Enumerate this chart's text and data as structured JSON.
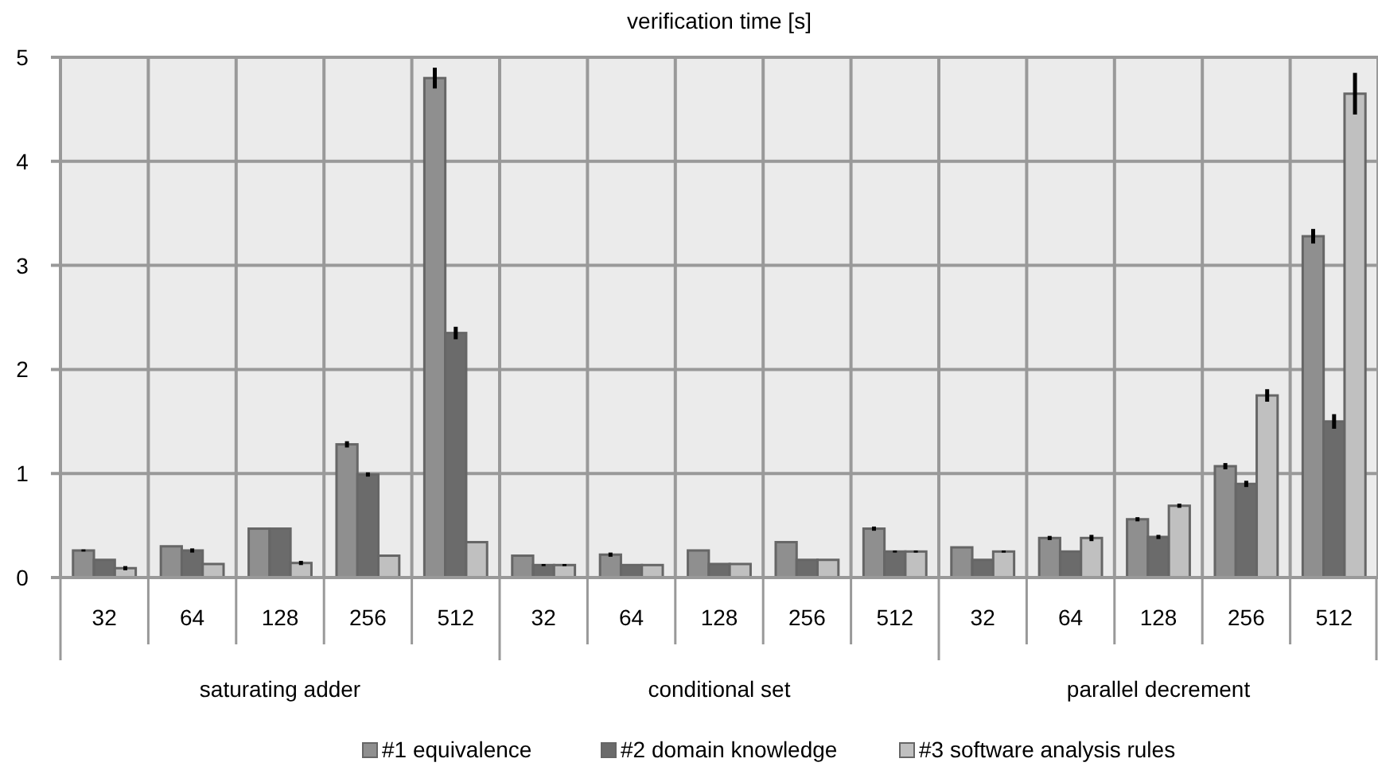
{
  "chart_data": {
    "type": "bar",
    "title": "verification time [s]",
    "categories": [
      "32",
      "64",
      "128",
      "256",
      "512",
      "32",
      "64",
      "128",
      "256",
      "512",
      "32",
      "64",
      "128",
      "256",
      "512"
    ],
    "annotations": [
      "saturating adder",
      "conditional set",
      "parallel decrement"
    ],
    "series": [
      {
        "name": "#1 equivalence",
        "color": "#8f8f8f",
        "values": [
          0.26,
          0.3,
          0.47,
          1.28,
          4.8,
          0.21,
          0.22,
          0.26,
          0.34,
          0.47,
          0.29,
          0.38,
          0.56,
          1.07,
          3.28
        ],
        "errors": [
          0.01,
          null,
          null,
          0.03,
          0.1,
          null,
          0.02,
          null,
          null,
          0.02,
          null,
          0.02,
          0.02,
          0.03,
          0.07
        ]
      },
      {
        "name": "#2 domain knowledge",
        "color": "#6b6b6b",
        "values": [
          0.17,
          0.26,
          0.47,
          0.99,
          2.35,
          0.12,
          0.12,
          0.13,
          0.17,
          0.25,
          0.17,
          0.25,
          0.39,
          0.9,
          1.5
        ],
        "errors": [
          null,
          0.02,
          null,
          0.02,
          0.06,
          0.01,
          null,
          null,
          null,
          0.01,
          null,
          null,
          0.02,
          0.03,
          0.07
        ]
      },
      {
        "name": "#3 software analysis rules",
        "color": "#c0c0c0",
        "values": [
          0.09,
          0.13,
          0.14,
          0.21,
          0.34,
          0.12,
          0.12,
          0.13,
          0.17,
          0.25,
          0.25,
          0.38,
          0.69,
          1.75,
          4.65
        ],
        "errors": [
          0.02,
          null,
          0.02,
          null,
          null,
          0.01,
          null,
          null,
          null,
          0.01,
          0.01,
          0.03,
          0.02,
          0.06,
          0.2
        ]
      }
    ],
    "ylim": [
      0,
      5
    ],
    "yticks": [
      0,
      1,
      2,
      3,
      4,
      5
    ],
    "grid": true,
    "legend": "bottom"
  }
}
